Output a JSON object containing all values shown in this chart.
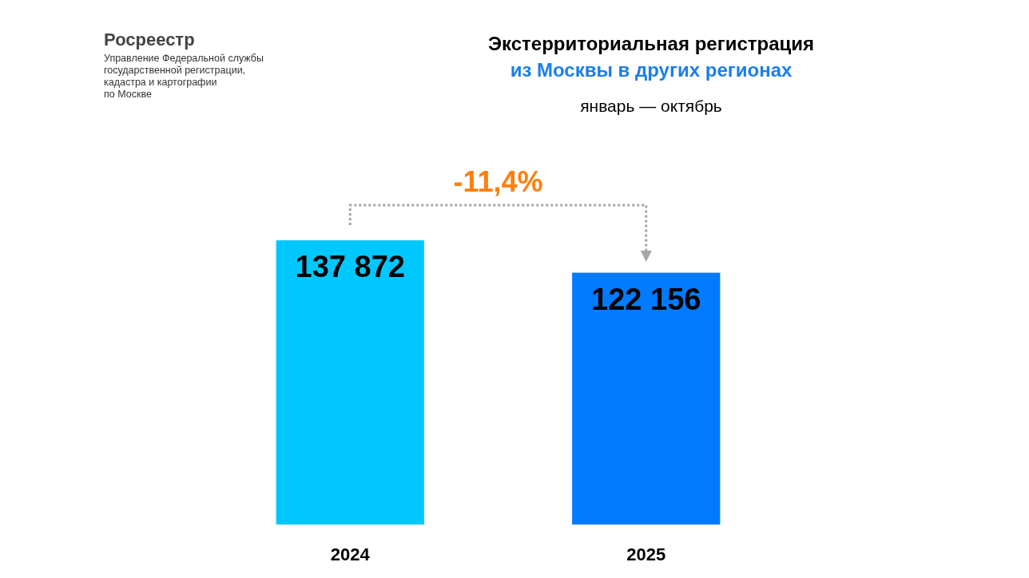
{
  "chart_data": {
    "type": "bar",
    "title": "Экстерриториальная регистрация\nиз Москвы в других регионах",
    "subtitle": "январь — октябрь",
    "categories": [
      "2024",
      "2025"
    ],
    "values": [
      137872,
      122156
    ],
    "colors": [
      "#00c8ff",
      "#007bff"
    ],
    "value_labels": [
      "137 872",
      "122 156"
    ],
    "annotations": [
      "-11,4%",
      "Росреестр",
      "Управление Федеральной службы\nгосударственной регистрации,\nкадастра и картографии\nпо Москве"
    ]
  }
}
